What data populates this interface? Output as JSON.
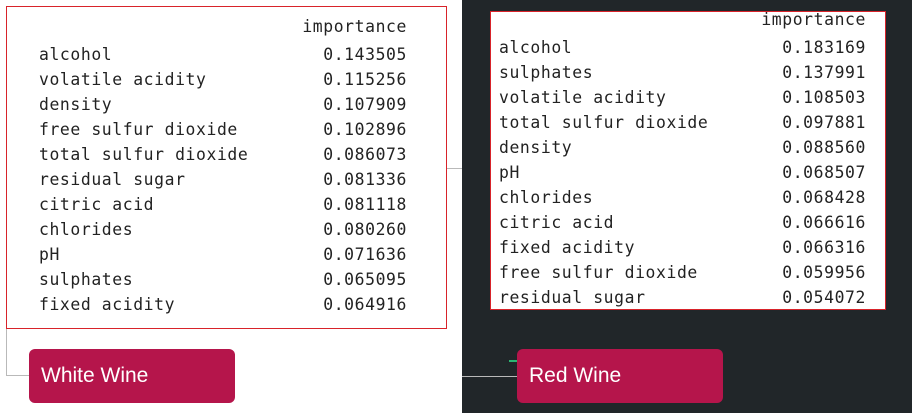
{
  "white_wine": {
    "column_header": "importance",
    "rows": [
      {
        "feature": "alcohol",
        "importance": "0.143505"
      },
      {
        "feature": "volatile acidity",
        "importance": "0.115256"
      },
      {
        "feature": "density",
        "importance": "0.107909"
      },
      {
        "feature": "free sulfur dioxide",
        "importance": "0.102896"
      },
      {
        "feature": "total sulfur dioxide",
        "importance": "0.086073"
      },
      {
        "feature": "residual sugar",
        "importance": "0.081336"
      },
      {
        "feature": "citric acid",
        "importance": "0.081118"
      },
      {
        "feature": "chlorides",
        "importance": "0.080260"
      },
      {
        "feature": "pH",
        "importance": "0.071636"
      },
      {
        "feature": "sulphates",
        "importance": "0.065095"
      },
      {
        "feature": "fixed acidity",
        "importance": "0.064916"
      }
    ],
    "label": "White Wine"
  },
  "red_wine": {
    "column_header": "importance",
    "rows": [
      {
        "feature": "alcohol",
        "importance": "0.183169"
      },
      {
        "feature": "sulphates",
        "importance": "0.137991"
      },
      {
        "feature": "volatile acidity",
        "importance": "0.108503"
      },
      {
        "feature": "total sulfur dioxide",
        "importance": "0.097881"
      },
      {
        "feature": "density",
        "importance": "0.088560"
      },
      {
        "feature": "pH",
        "importance": "0.068507"
      },
      {
        "feature": "chlorides",
        "importance": "0.068428"
      },
      {
        "feature": "citric acid",
        "importance": "0.066616"
      },
      {
        "feature": "fixed acidity",
        "importance": "0.066316"
      },
      {
        "feature": "free sulfur dioxide",
        "importance": "0.059956"
      },
      {
        "feature": "residual sugar",
        "importance": "0.054072"
      }
    ],
    "label": "Red Wine"
  },
  "colors": {
    "dark_background": "#212629",
    "box_border": "#d8232a",
    "label_background": "#b5154b",
    "accent_line": "#2bb673"
  }
}
